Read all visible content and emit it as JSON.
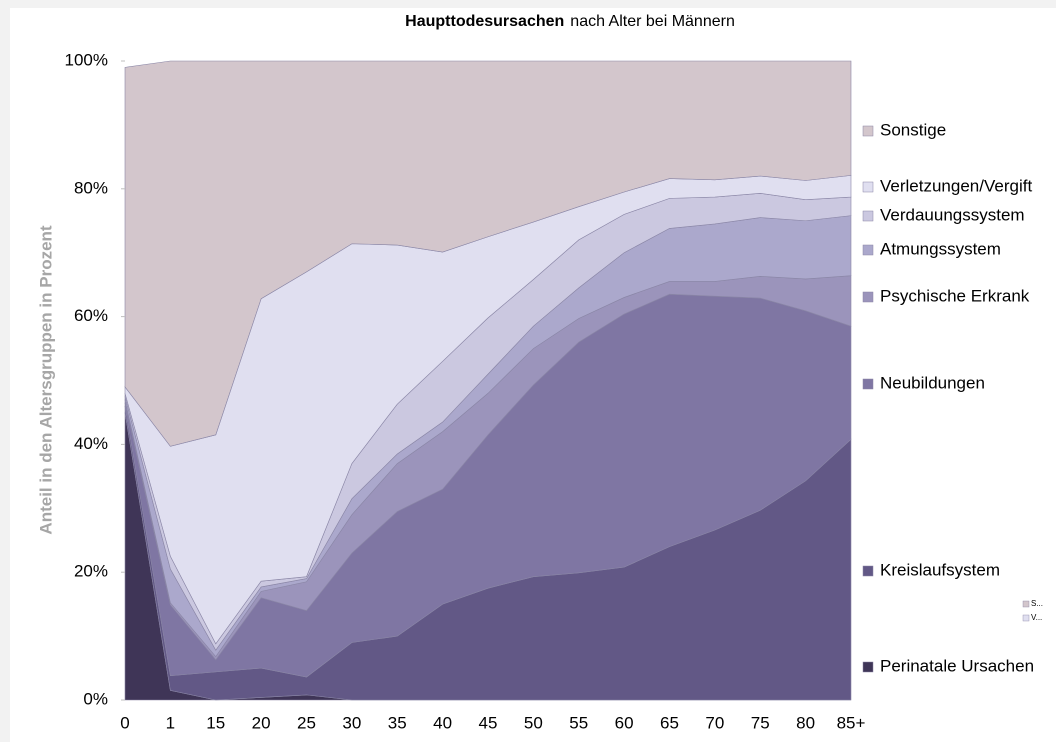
{
  "chart_data": {
    "type": "stacked_area_percent",
    "title_bold": "Haupttodesursachen",
    "title_rest": "nach Alter bei Männern",
    "y_label": "Anteil in den Altersgruppen in Prozent",
    "categories": [
      "0",
      "1",
      "15",
      "20",
      "25",
      "30",
      "35",
      "40",
      "45",
      "50",
      "55",
      "60",
      "65",
      "70",
      "75",
      "80",
      "85+"
    ],
    "ylim": [
      0,
      100
    ],
    "yticks": [
      {
        "value": 0,
        "label": "0%"
      },
      {
        "value": 20,
        "label": "20%"
      },
      {
        "value": 40,
        "label": "40%"
      },
      {
        "value": 60,
        "label": "60%"
      },
      {
        "value": 80,
        "label": "80%"
      },
      {
        "value": 100,
        "label": "100%"
      }
    ],
    "series": [
      {
        "name": "Perinatale Ursachen",
        "color": "#3f3557",
        "values": [
          45,
          1.5,
          0,
          0.4,
          0.8,
          0,
          0,
          0,
          0,
          0,
          0,
          0,
          0,
          0,
          0,
          0,
          0
        ]
      },
      {
        "name": "Kreislaufsystem",
        "color": "#625886",
        "values": [
          1,
          2.3,
          4.4,
          4.6,
          2.8,
          9,
          10,
          15,
          17.5,
          19.3,
          19.9,
          20.8,
          24,
          26.6,
          29.7,
          34.3,
          40.8
        ]
      },
      {
        "name": "Neubildungen",
        "color": "#7f76a3",
        "values": [
          0.5,
          11.1,
          1.9,
          11,
          10.4,
          14,
          19.5,
          18,
          24,
          30,
          36.1,
          39.6,
          39.5,
          36.6,
          33.2,
          26.6,
          17.7
        ]
      },
      {
        "name": "Psychische Erkrank",
        "color": "#9b94bb",
        "values": [
          0.5,
          0.3,
          0.5,
          1,
          4.5,
          6,
          7.5,
          9,
          6.5,
          5.7,
          3.7,
          2.6,
          2,
          2.3,
          3.4,
          5,
          7.9
        ]
      },
      {
        "name": "Atmungssystem",
        "color": "#aba8cc",
        "values": [
          0.5,
          5.3,
          1,
          0.7,
          0.5,
          2.5,
          1.5,
          1.5,
          3,
          3.5,
          4.8,
          7,
          8.3,
          9,
          9.2,
          9.1,
          9.4
        ]
      },
      {
        "name": "Verdauungssystem",
        "color": "#cbc8e0",
        "values": [
          0.5,
          2,
          1,
          0.9,
          0.3,
          5.5,
          7.8,
          9.5,
          8.8,
          7.3,
          7.5,
          6,
          4.7,
          4.2,
          3.8,
          3.3,
          2.9
        ]
      },
      {
        "name": "Verletzungen/Vergift",
        "color": "#e0dff0",
        "values": [
          1,
          17.2,
          32.7,
          44.2,
          47.7,
          34.4,
          24.9,
          17.1,
          12.7,
          9,
          5.2,
          3.5,
          3.1,
          2.7,
          2.7,
          3,
          3.4
        ]
      },
      {
        "name": "Sonstige",
        "color": "#d3c6cc",
        "values": [
          50,
          60.3,
          58.5,
          37.2,
          33,
          28.6,
          28.8,
          29.9,
          27.5,
          25.2,
          22.8,
          20.5,
          18.4,
          18.6,
          18,
          18.7,
          17.9
        ]
      }
    ],
    "mini_legend": [
      "S...",
      "V..."
    ]
  }
}
